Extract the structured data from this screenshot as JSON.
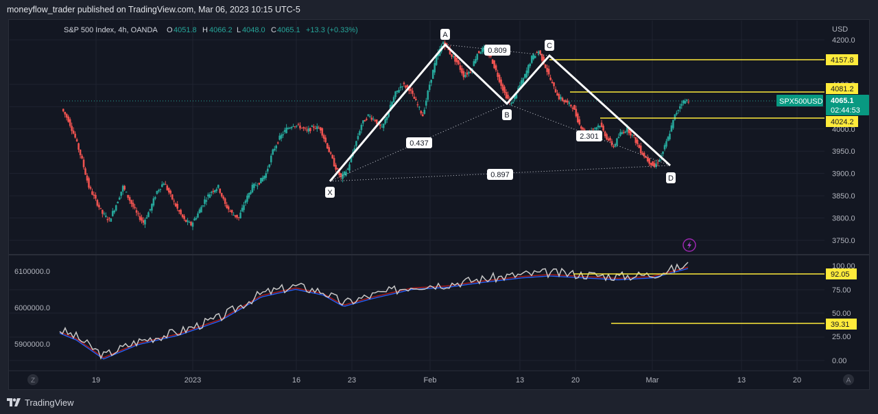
{
  "header": {
    "published_line": "moneyflow_trader published on TradingView.com, Mar 06, 2023 10:15 UTC-5"
  },
  "legend": {
    "symbol": "S&P 500 Index, 4h, OANDA",
    "o_label": "O",
    "o_value": "4051.8",
    "h_label": "H",
    "h_value": "4066.2",
    "l_label": "L",
    "l_value": "4048.0",
    "c_label": "C",
    "c_value": "4065.1",
    "change": "+13.3 (+0.33%)"
  },
  "price_axis": {
    "currency": "USD",
    "ticks": [
      "4200.0",
      "4100.0",
      "4050.0",
      "4000.0",
      "3950.0",
      "3900.0",
      "3850.0",
      "3800.0",
      "3750.0"
    ]
  },
  "price_badges": [
    {
      "value": "4157.8"
    },
    {
      "value": "4081.2"
    },
    {
      "value": "4024.2"
    }
  ],
  "symbol_badge": {
    "symbol": "SPX500USD",
    "price": "4065.1",
    "countdown": "02:44:53"
  },
  "pattern": {
    "points": [
      "X",
      "A",
      "B",
      "C",
      "D"
    ],
    "ratios": [
      {
        "label": "0.809"
      },
      {
        "label": "0.437"
      },
      {
        "label": "2.301"
      },
      {
        "label": "0.897"
      }
    ]
  },
  "indicator_left_axis": [
    "6100000.0",
    "6000000.0",
    "5900000.0"
  ],
  "indicator_right_axis": [
    "100.00",
    "75.00",
    "50.00",
    "25.00",
    "0.00"
  ],
  "indicator_badges": [
    {
      "value": "92.05"
    },
    {
      "value": "39.31"
    }
  ],
  "time_axis": [
    "19",
    "2023",
    "16",
    "23",
    "Feb",
    "13",
    "20",
    "Mar",
    "13",
    "20"
  ],
  "corner_buttons": {
    "left": "Z",
    "right": "A"
  },
  "footer": {
    "brand": "TradingView"
  },
  "colors": {
    "up": "#26a69a",
    "down": "#ef5350",
    "level": "#ffeb3b",
    "pattern": "#ffffff",
    "badge_green": "#089981",
    "last_price": "#26a69a"
  },
  "chart_data": {
    "type": "candlestick",
    "title": "S&P 500 Index, 4h, OANDA",
    "ylabel": "USD",
    "ylim": [
      3725,
      4225
    ],
    "x_labels": [
      "19",
      "2023",
      "16",
      "23",
      "Feb",
      "13",
      "20",
      "Mar",
      "13",
      "20"
    ],
    "harmonic_pattern": {
      "X": 3890,
      "A": 4195,
      "B": 4055,
      "C": 4175,
      "D": 3915,
      "ratios": {
        "AB_XA": 0.809,
        "XB": 0.437,
        "BD": 2.301,
        "XD": 0.897
      }
    },
    "horizontal_levels": [
      4157.8,
      4081.2,
      4024.2
    ],
    "last_price": 4065.1,
    "price_path": [
      4045,
      4020,
      3980,
      3930,
      3870,
      3840,
      3810,
      3795,
      3830,
      3870,
      3840,
      3810,
      3790,
      3820,
      3860,
      3880,
      3850,
      3820,
      3795,
      3785,
      3810,
      3840,
      3860,
      3870,
      3830,
      3810,
      3800,
      3840,
      3870,
      3880,
      3900,
      3950,
      3980,
      4000,
      4010,
      4005,
      3995,
      4005,
      4000,
      3960,
      3920,
      3890,
      3910,
      3960,
      4010,
      4030,
      4020,
      4000,
      4040,
      4080,
      4100,
      4090,
      4060,
      4030,
      4100,
      4160,
      4195,
      4170,
      4150,
      4120,
      4130,
      4170,
      4180,
      4160,
      4120,
      4080,
      4055,
      4090,
      4120,
      4160,
      4175,
      4140,
      4100,
      4070,
      4060,
      4050,
      4010,
      3990,
      4000,
      4010,
      3980,
      3960,
      3990,
      4000,
      3980,
      3950,
      3930,
      3915,
      3940,
      3980,
      4030,
      4060,
      4065
    ],
    "indicator": {
      "right_scale_ticks": [
        100,
        75,
        50,
        25,
        0
      ],
      "left_scale_ticks": [
        6100000,
        6000000,
        5900000
      ],
      "levels": [
        92.05,
        39.31
      ]
    }
  }
}
